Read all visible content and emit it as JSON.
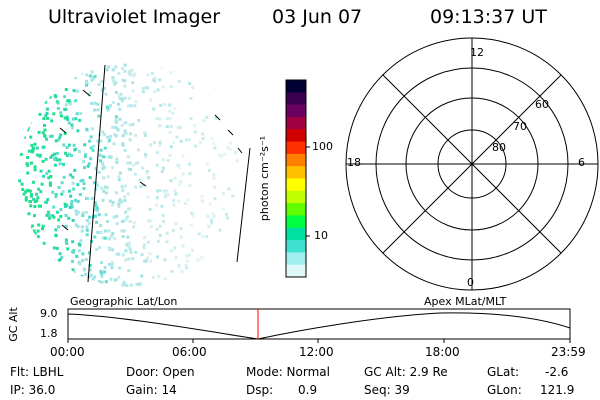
{
  "header": {
    "title": "Ultraviolet Imager",
    "date": "03 Jun 07",
    "time": "09:13:37 UT"
  },
  "image": {
    "label_left": "Geographic Lat/Lon",
    "label_right": "Apex MLat/MLT"
  },
  "colorbar": {
    "unit_label": "photon cm⁻²s⁻¹",
    "ticks": [
      "100",
      "10"
    ],
    "colors": [
      "#000033",
      "#3a0050",
      "#6a0060",
      "#a00040",
      "#d00000",
      "#ff3000",
      "#ff8000",
      "#ffc000",
      "#ffff00",
      "#c0ff00",
      "#60ff00",
      "#00ff40",
      "#00e0a0",
      "#40e0d0",
      "#a0f0f0",
      "#e0f8f8"
    ]
  },
  "polar": {
    "mlt_labels": {
      "top": "12",
      "bottom": "0",
      "left": "18",
      "right": "6"
    },
    "lat_labels": [
      "60",
      "70",
      "80"
    ]
  },
  "altitude_plot": {
    "ylabel": "GC Alt",
    "y_ticks": [
      "9.0",
      "1.8"
    ],
    "x_ticks": [
      "00:00",
      "06:00",
      "12:00",
      "18:00",
      "23:59"
    ],
    "current_time_color": "#ff0000"
  },
  "status": {
    "flt": "Flt: LBHL",
    "ip": "IP: 36.0",
    "door": "Door: Open",
    "gain": "Gain: 14",
    "mode": "Mode: Normal",
    "dsp_label": "Dsp:",
    "dsp_value": "0.9",
    "gc_alt": "GC Alt: 2.9 Re",
    "seq": "Seq: 39",
    "glat_label": "GLat:",
    "glat_value": "-2.6",
    "glon_label": "GLon:",
    "glon_value": "121.9"
  }
}
